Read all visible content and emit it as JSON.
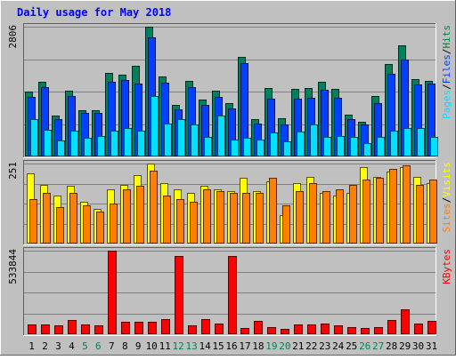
{
  "chart_data": {
    "type": "bar",
    "title": "Daily usage for May 2018",
    "days": [
      "1",
      "2",
      "3",
      "4",
      "5",
      "6",
      "7",
      "8",
      "9",
      "10",
      "11",
      "12",
      "13",
      "14",
      "15",
      "16",
      "17",
      "18",
      "19",
      "20",
      "21",
      "22",
      "23",
      "24",
      "25",
      "26",
      "27",
      "28",
      "29",
      "30",
      "31"
    ],
    "weekend_days": [
      "5",
      "6",
      "12",
      "13",
      "19",
      "20",
      "26",
      "27"
    ],
    "panels": [
      {
        "id": "hits-panel",
        "ymax_label": "2806",
        "ymax": 2806,
        "legend": [
          {
            "label": "Pages",
            "color": "#00e0ff"
          },
          {
            "label": "/",
            "color": "#000000"
          },
          {
            "label": "Files",
            "color": "#0040ff"
          },
          {
            "label": "/",
            "color": "#000000"
          },
          {
            "label": "Hits",
            "color": "#008040"
          }
        ],
        "series": [
          {
            "name": "Hits",
            "color": "#00805c",
            "values": [
              1400,
              1620,
              880,
              1430,
              1000,
              1000,
              1800,
              1760,
              1960,
              2806,
              1730,
              1110,
              1640,
              1230,
              1420,
              1160,
              2160,
              800,
              1480,
              830,
              1460,
              1480,
              1610,
              1460,
              900,
              750,
              1300,
              2000,
              2400,
              1670,
              1630
            ]
          },
          {
            "name": "Files",
            "color": "#0040ff",
            "values": [
              1280,
              1500,
              810,
              1310,
              940,
              940,
              1620,
              1660,
              1580,
              2580,
              1600,
              1010,
              1500,
              1120,
              1290,
              1040,
              2020,
              720,
              1250,
              700,
              1250,
              1260,
              1440,
              1260,
              800,
              700,
              1150,
              1780,
              2100,
              1560,
              1580
            ]
          },
          {
            "name": "Pages",
            "color": "#00e0ff",
            "values": [
              800,
              570,
              350,
              550,
              410,
              440,
              550,
              610,
              550,
              1300,
              710,
              810,
              700,
              430,
              880,
              370,
              400,
              370,
              520,
              330,
              540,
              700,
              420,
              440,
              420,
              280,
              420,
              550,
              610,
              620,
              420
            ]
          }
        ]
      },
      {
        "id": "visits-panel",
        "ymax_label": "251",
        "ymax": 251,
        "legend": [
          {
            "label": "Sites",
            "color": "#ff8000"
          },
          {
            "label": "/",
            "color": "#000000"
          },
          {
            "label": "Visits",
            "color": "#ffff00"
          }
        ],
        "series": [
          {
            "name": "Visits",
            "color": "#ffff00",
            "values": [
              220,
              185,
              150,
              180,
              130,
              110,
              170,
              185,
              215,
              251,
              190,
              170,
              160,
              180,
              170,
              165,
              205,
              165,
              195,
              90,
              190,
              210,
              160,
              150,
              160,
              240,
              210,
              225,
              240,
              210,
              190
            ]
          },
          {
            "name": "Sites",
            "color": "#ff8000",
            "values": [
              140,
              160,
              115,
              160,
              120,
              100,
              125,
              170,
              180,
              230,
              150,
              140,
              130,
              170,
              165,
              160,
              160,
              160,
              205,
              120,
              165,
              190,
              165,
              170,
              185,
              200,
              205,
              235,
              245,
              185,
              200
            ]
          }
        ]
      },
      {
        "id": "kbytes-panel",
        "ymax_label": "533844",
        "ymax": 533844,
        "legend": [
          {
            "label": "KBytes",
            "color": "#ff0000"
          }
        ],
        "series": [
          {
            "name": "KBytes",
            "color": "#ff0000",
            "values": [
              65000,
              65000,
              55000,
              90000,
              62000,
              55000,
              533844,
              80000,
              80000,
              80000,
              95000,
              500000,
              55000,
              95000,
              70000,
              500000,
              40000,
              85000,
              45000,
              35000,
              65000,
              65000,
              70000,
              55000,
              45000,
              40000,
              45000,
              90000,
              160000,
              70000,
              85000
            ]
          }
        ]
      }
    ]
  }
}
